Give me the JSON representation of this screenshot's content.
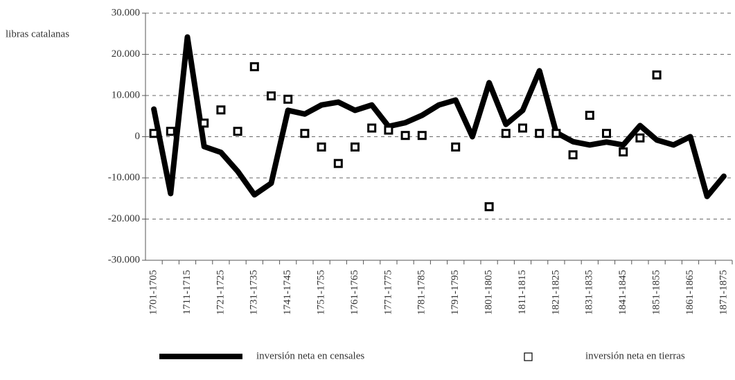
{
  "chart_data": {
    "type": "line",
    "y_label": "libras catalanas",
    "categories": [
      "1701-1705",
      null,
      "1711-1715",
      null,
      "1721-1725",
      null,
      "1731-1735",
      null,
      "1741-1745",
      null,
      "1751-1755",
      null,
      "1761-1765",
      null,
      "1771-1775",
      null,
      "1781-1785",
      null,
      "1791-1795",
      null,
      "1801-1805",
      null,
      "1811-1815",
      null,
      "1821-1825",
      null,
      "1831-1835",
      null,
      "1841-1845",
      null,
      "1851-1855",
      null,
      "1861-1865",
      null,
      "1871-1875"
    ],
    "series": [
      {
        "name": "inversión neta en censales",
        "color": "#000000",
        "marker": "line",
        "values": [
          6700,
          -13800,
          24200,
          -2400,
          -3800,
          -8400,
          -14100,
          -11300,
          6400,
          5500,
          7700,
          8400,
          6400,
          7700,
          2500,
          3400,
          5200,
          7700,
          8900,
          0,
          13100,
          3000,
          6400,
          16000,
          1000,
          -1200,
          -2000,
          -1300,
          -2000,
          2700,
          -800,
          -2000,
          0,
          -14500,
          -9600
        ]
      },
      {
        "name": "inversión neta en tierras",
        "color": "#000000",
        "marker": "square",
        "values": [
          800,
          1300,
          null,
          3300,
          6500,
          1300,
          17000,
          9900,
          9100,
          800,
          -2500,
          -6500,
          -2500,
          2100,
          1600,
          300,
          300,
          null,
          -2500,
          null,
          -17000,
          800,
          2100,
          800,
          800,
          -4400,
          5200,
          800,
          -3700,
          -300,
          15000,
          null,
          null,
          null,
          null
        ]
      }
    ],
    "ylim": [
      -30000,
      30000
    ],
    "yticks": [
      {
        "value": -30000,
        "label": "-30.000"
      },
      {
        "value": -20000,
        "label": "-20.000"
      },
      {
        "value": -10000,
        "label": "-10.000"
      },
      0,
      {
        "value": 10000,
        "label": "10.000"
      },
      {
        "value": 20000,
        "label": "20.000"
      },
      {
        "value": 30000,
        "label": "30.000"
      }
    ],
    "grid": true
  }
}
